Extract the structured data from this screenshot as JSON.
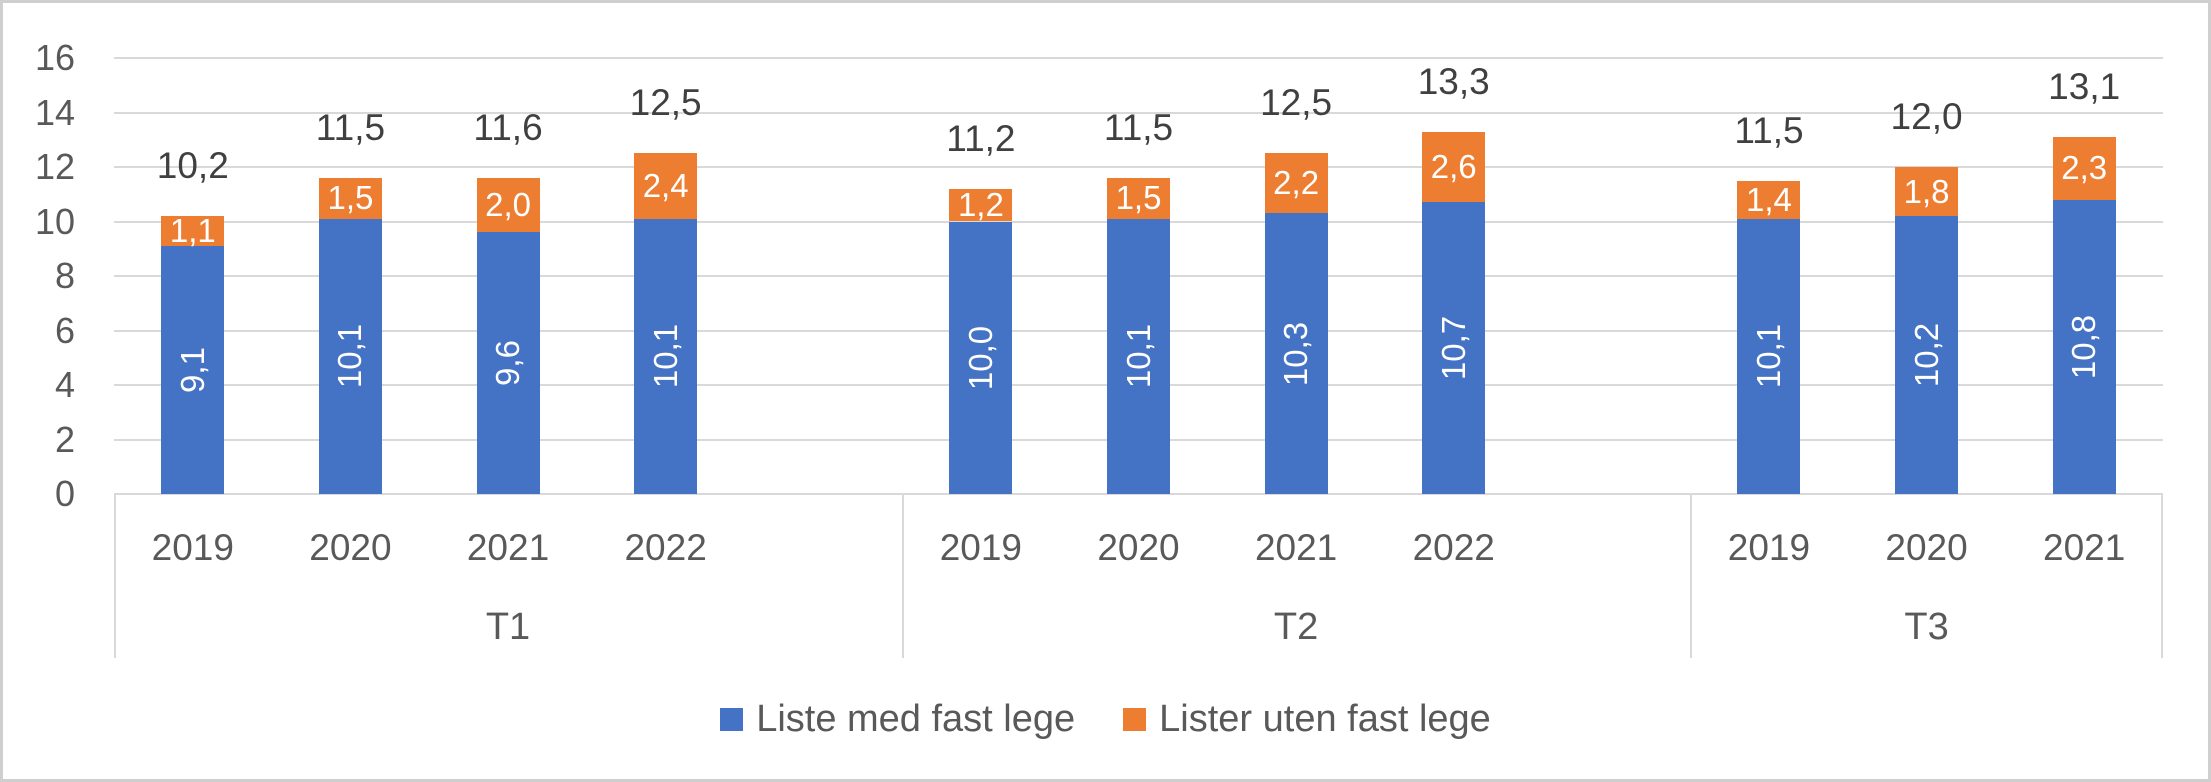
{
  "chart_data": {
    "type": "bar",
    "stacked": true,
    "title": "",
    "xlabel": "",
    "ylabel": "",
    "ylim": [
      0,
      16
    ],
    "ytick_step": 2,
    "ytick_labels": [
      "0",
      "2",
      "4",
      "6",
      "8",
      "10",
      "12",
      "14",
      "16"
    ],
    "grid": true,
    "legend_position": "bottom",
    "categories": [
      "2019",
      "2020",
      "2021",
      "2022",
      "2019",
      "2020",
      "2021",
      "2022",
      "2019",
      "2020",
      "2021"
    ],
    "groups": [
      {
        "label": "T1",
        "count": 4
      },
      {
        "label": "T2",
        "count": 4
      },
      {
        "label": "T3",
        "count": 3
      }
    ],
    "series": [
      {
        "name": "Liste med fast lege",
        "color": "#4472C4",
        "values": [
          9.1,
          10.1,
          9.6,
          10.1,
          10.0,
          10.1,
          10.3,
          10.7,
          10.1,
          10.2,
          10.8
        ],
        "labels": [
          "9,1",
          "10,1",
          "9,6",
          "10,1",
          "10,0",
          "10,1",
          "10,3",
          "10,7",
          "10,1",
          "10,2",
          "10,8"
        ]
      },
      {
        "name": "Lister uten fast lege",
        "color": "#ED7D31",
        "values": [
          1.1,
          1.5,
          2.0,
          2.4,
          1.2,
          1.5,
          2.2,
          2.6,
          1.4,
          1.8,
          2.3
        ],
        "labels": [
          "1,1",
          "1,5",
          "2,0",
          "2,4",
          "1,2",
          "1,5",
          "2,2",
          "2,6",
          "1,4",
          "1,8",
          "2,3"
        ]
      }
    ],
    "total_labels": [
      "10,2",
      "11,5",
      "11,6",
      "12,5",
      "11,2",
      "11,5",
      "12,5",
      "13,3",
      "11,5",
      "12,0",
      "13,1"
    ]
  },
  "colors": {
    "series_blue": "#4472C4",
    "series_orange": "#ED7D31",
    "gridline": "#D9D9D9",
    "axis_text": "#595959",
    "total_text": "#404040",
    "bar_label_text": "#FFFFFF",
    "frame_border": "#CFCFCF"
  }
}
